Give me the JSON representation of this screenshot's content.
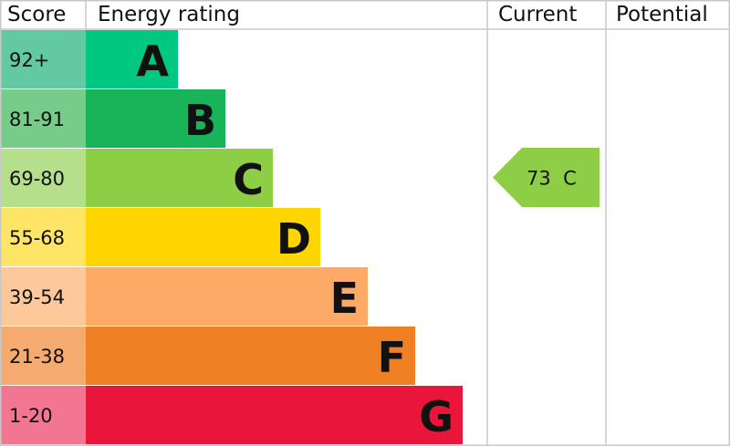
{
  "chart_data": {
    "type": "bar",
    "headers": {
      "score": "Score",
      "rating": "Energy rating",
      "current": "Current",
      "potential": "Potential"
    },
    "bands": [
      {
        "letter": "A",
        "range": "92+",
        "color": "#00c781",
        "score_color": "#63c8a4"
      },
      {
        "letter": "B",
        "range": "81-91",
        "color": "#19b459",
        "score_color": "#77cc8a"
      },
      {
        "letter": "C",
        "range": "69-80",
        "color": "#8dce46",
        "score_color": "#b5df8a"
      },
      {
        "letter": "D",
        "range": "55-68",
        "color": "#ffd500",
        "score_color": "#ffe566"
      },
      {
        "letter": "E",
        "range": "39-54",
        "color": "#fcaa65",
        "score_color": "#fdc99a"
      },
      {
        "letter": "F",
        "range": "21-38",
        "color": "#ef8023",
        "score_color": "#f5aa70"
      },
      {
        "letter": "G",
        "range": "1-20",
        "color": "#e9153b",
        "score_color": "#f27591"
      }
    ],
    "current": {
      "value": 73,
      "band": "C",
      "label": "73  C",
      "color": "#8dce46"
    },
    "potential": null
  }
}
